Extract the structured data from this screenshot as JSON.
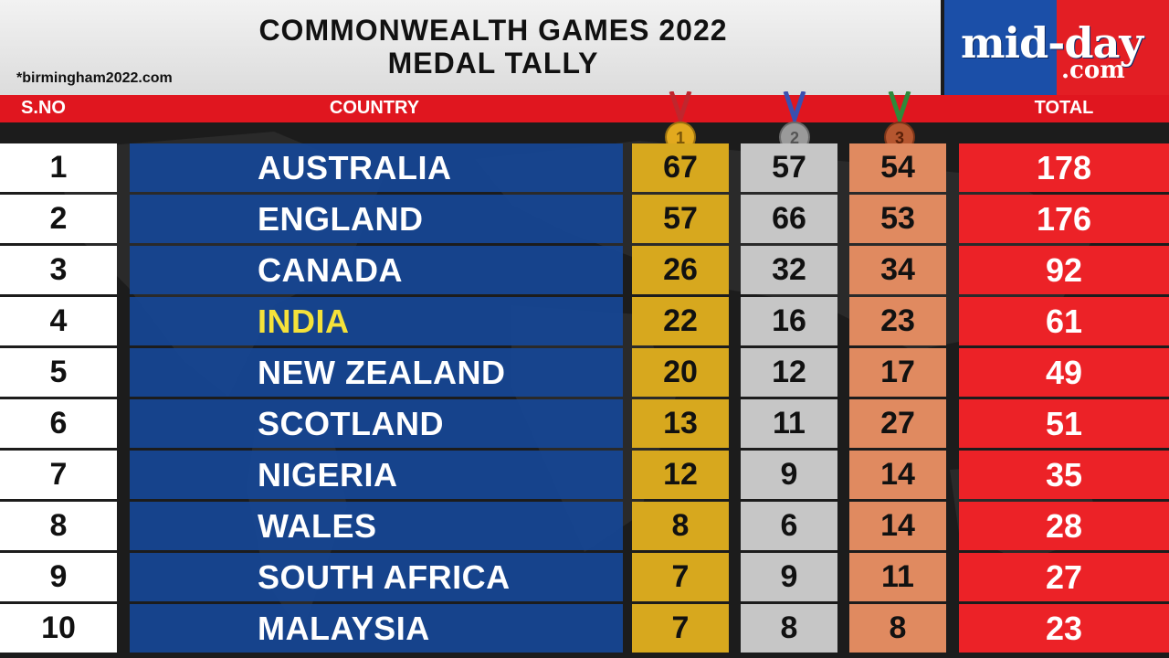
{
  "header": {
    "title_line1": "COMMONWEALTH GAMES 2022",
    "title_line2": "MEDAL TALLY",
    "source": "*birmingham2022.com"
  },
  "logo": {
    "main": "mid-day",
    "sub": ".com"
  },
  "columns": {
    "sno": "S.NO",
    "country": "COUNTRY",
    "total": "TOTAL"
  },
  "medal_icons": {
    "gold": "1",
    "silver": "2",
    "bronze": "3"
  },
  "colors": {
    "gold": "#d7a81e",
    "silver": "#c6c6c6",
    "bronze": "#e08a60",
    "total": "#ec2227",
    "country": "#164696",
    "highlight": "#f5e23a"
  },
  "rows": [
    {
      "sno": "1",
      "country": "AUSTRALIA",
      "gold": "67",
      "silver": "57",
      "bronze": "54",
      "total": "178"
    },
    {
      "sno": "2",
      "country": "ENGLAND",
      "gold": "57",
      "silver": "66",
      "bronze": "53",
      "total": "176"
    },
    {
      "sno": "3",
      "country": "CANADA",
      "gold": "26",
      "silver": "32",
      "bronze": "34",
      "total": "92"
    },
    {
      "sno": "4",
      "country": "INDIA",
      "gold": "22",
      "silver": "16",
      "bronze": "23",
      "total": "61",
      "highlight": true
    },
    {
      "sno": "5",
      "country": "NEW ZEALAND",
      "gold": "20",
      "silver": "12",
      "bronze": "17",
      "total": "49"
    },
    {
      "sno": "6",
      "country": "SCOTLAND",
      "gold": "13",
      "silver": "11",
      "bronze": "27",
      "total": "51"
    },
    {
      "sno": "7",
      "country": "NIGERIA",
      "gold": "12",
      "silver": "9",
      "bronze": "14",
      "total": "35"
    },
    {
      "sno": "8",
      "country": "WALES",
      "gold": "8",
      "silver": "6",
      "bronze": "14",
      "total": "28"
    },
    {
      "sno": "9",
      "country": "SOUTH AFRICA",
      "gold": "7",
      "silver": "9",
      "bronze": "11",
      "total": "27"
    },
    {
      "sno": "10",
      "country": "MALAYSIA",
      "gold": "7",
      "silver": "8",
      "bronze": "8",
      "total": "23"
    }
  ]
}
